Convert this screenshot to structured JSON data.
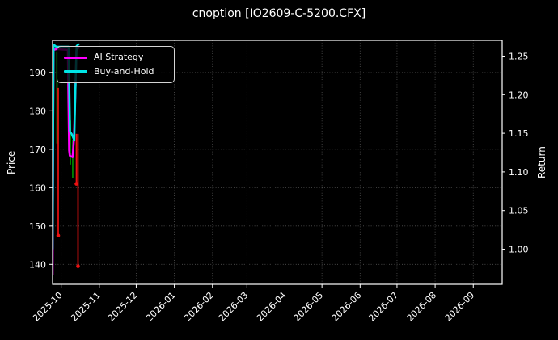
{
  "title": "cnoption [IO2609-C-5200.CFX]",
  "colors": {
    "background": "#000000",
    "foreground": "#ffffff",
    "spine": "#ffffff",
    "grid": "rgba(255,255,255,0.32)",
    "ai_strategy": "#ff00ff",
    "buy_and_hold": "#00e5e5",
    "up_wick": "#008d00",
    "down_wick": "#ee1111",
    "low_marker": "#ee1111"
  },
  "legend": {
    "items": [
      {
        "label": "AI Strategy",
        "color": "#ff00ff"
      },
      {
        "label": "Buy-and-Hold",
        "color": "#00e5e5"
      }
    ]
  },
  "chart_data": {
    "type": "line",
    "title": "cnoption [IO2609-C-5200.CFX]",
    "grid": "dotted, on price ticks and month ticks",
    "legend_position": "upper-left",
    "x_axis": {
      "unit": "month",
      "range_days": [
        0,
        365.5
      ],
      "ticks": [
        {
          "label": "2025-10",
          "day": 7
        },
        {
          "label": "2025-11",
          "day": 38
        },
        {
          "label": "2025-12",
          "day": 68
        },
        {
          "label": "2026-01",
          "day": 99
        },
        {
          "label": "2026-02",
          "day": 130
        },
        {
          "label": "2026-03",
          "day": 158
        },
        {
          "label": "2026-04",
          "day": 189
        },
        {
          "label": "2026-05",
          "day": 219
        },
        {
          "label": "2026-06",
          "day": 250
        },
        {
          "label": "2026-07",
          "day": 280
        },
        {
          "label": "2026-08",
          "day": 311
        },
        {
          "label": "2026-09",
          "day": 342
        }
      ]
    },
    "left_axis": {
      "label": "Price",
      "range": [
        134.8,
        198.4
      ],
      "ticks": [
        {
          "label": "140",
          "value": 140
        },
        {
          "label": "150",
          "value": 150
        },
        {
          "label": "160",
          "value": 160
        },
        {
          "label": "170",
          "value": 170
        },
        {
          "label": "180",
          "value": 180
        },
        {
          "label": "190",
          "value": 190
        }
      ]
    },
    "right_axis": {
      "label": "Return",
      "range": [
        0.9545,
        1.2704
      ],
      "ticks": [
        {
          "label": "1.00",
          "value": 1.0
        },
        {
          "label": "1.05",
          "value": 1.05
        },
        {
          "label": "1.10",
          "value": 1.1
        },
        {
          "label": "1.15",
          "value": 1.15
        },
        {
          "label": "1.20",
          "value": 1.2
        },
        {
          "label": "1.25",
          "value": 1.25
        }
      ]
    },
    "series": [
      {
        "name": "AI Strategy",
        "axis": "return",
        "color": "#ff00ff",
        "linewidth": 2.5,
        "points": [
          [
            0,
            0.967
          ],
          [
            0.7,
            1.258
          ],
          [
            3,
            1.259
          ],
          [
            12.4,
            1.258
          ],
          [
            13.5,
            1.128
          ],
          [
            14.0,
            1.121
          ],
          [
            16.3,
            1.119
          ],
          [
            17.4,
            1.143
          ],
          [
            18.4,
            1.198
          ],
          [
            19.4,
            1.257
          ],
          [
            21.5,
            1.262
          ]
        ]
      },
      {
        "name": "Buy-and-Hold",
        "axis": "return",
        "color": "#00e5e5",
        "linewidth": 2.5,
        "points": [
          [
            0,
            1.0
          ],
          [
            0.8,
            1.265
          ],
          [
            3,
            1.262
          ],
          [
            13.1,
            1.262
          ],
          [
            14.2,
            1.152
          ],
          [
            15.6,
            1.149
          ],
          [
            17.6,
            1.141
          ],
          [
            18.5,
            1.2
          ],
          [
            19.5,
            1.263
          ],
          [
            21.5,
            1.266
          ]
        ]
      }
    ],
    "wicks": [
      {
        "day": 3.6,
        "high": 195.5,
        "low": 171.5,
        "dir": "up",
        "marker": false
      },
      {
        "day": 4.6,
        "high": 186.0,
        "low": 147.5,
        "dir": "down",
        "marker": true
      },
      {
        "day": 14.5,
        "high": 177.5,
        "low": 166.0,
        "dir": "up",
        "marker": false
      },
      {
        "day": 16.4,
        "high": 172.5,
        "low": 162.5,
        "dir": "up",
        "marker": false
      },
      {
        "day": 19.4,
        "high": 174.0,
        "low": 161.0,
        "dir": "down",
        "marker": true
      },
      {
        "day": 20.7,
        "high": 174.0,
        "low": 139.5,
        "dir": "down",
        "marker": true
      }
    ]
  }
}
